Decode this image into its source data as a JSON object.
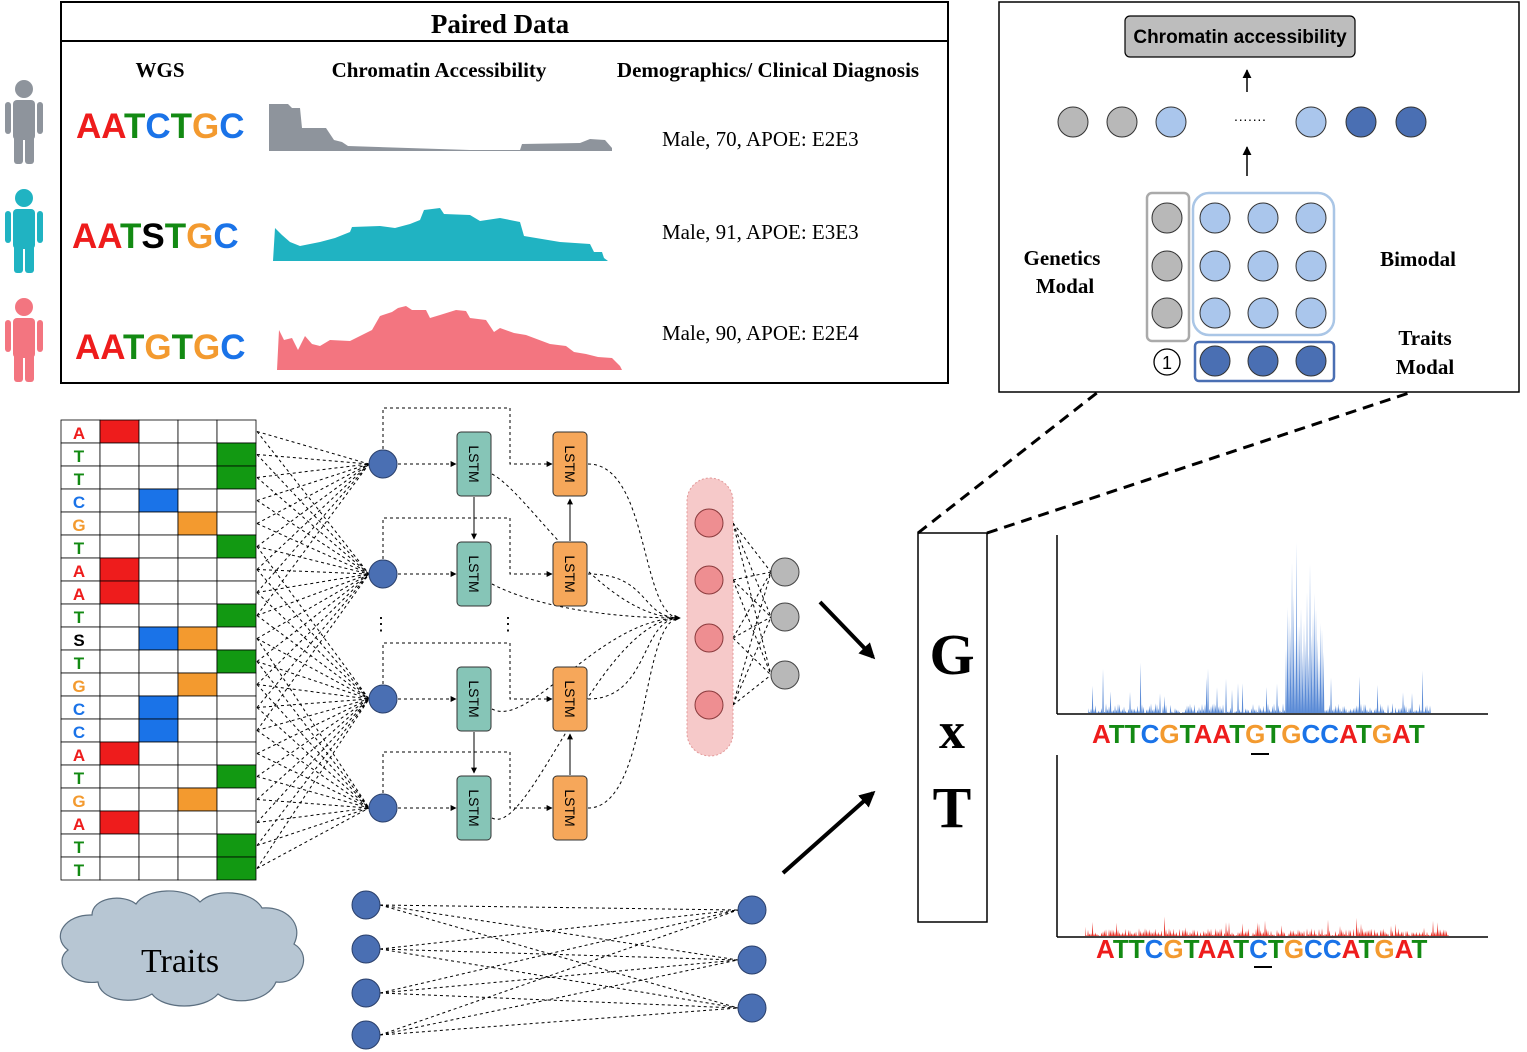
{
  "paired": {
    "title": "Paired Data",
    "col_wgs": "WGS",
    "col_chromatin": "Chromatin Accessibility",
    "col_demo": "Demographics/ Clinical Diagnosis",
    "rows": [
      {
        "seq": [
          "A",
          "A",
          "T",
          "C",
          "T",
          "G",
          "C"
        ],
        "demo": "Male, 70, APOE: E2E3",
        "color": "#8e949c"
      },
      {
        "seq": [
          "A",
          "A",
          "T",
          "S",
          "T",
          "G",
          "C"
        ],
        "demo": "Male, 91, APOE: E3E3",
        "color": "#20b3c2"
      },
      {
        "seq": [
          "A",
          "A",
          "T",
          "G",
          "T",
          "G",
          "C"
        ],
        "demo": "Male, 90, APOE: E2E4",
        "color": "#f37580"
      }
    ]
  },
  "base_colors": {
    "A": "#ee1c1c",
    "T": "#138a13",
    "C": "#1a73e8",
    "G": "#f39a2f",
    "S": "#000000"
  },
  "onehot_sequence": [
    "A",
    "T",
    "T",
    "C",
    "G",
    "T",
    "A",
    "A",
    "T",
    "S",
    "T",
    "G",
    "C",
    "C",
    "A",
    "T",
    "G",
    "A",
    "T",
    "T"
  ],
  "lstm_label": "LSTM",
  "traits_label": "Traits",
  "gxt": {
    "g": "G",
    "x": "x",
    "t": "T"
  },
  "model": {
    "output_label": "Chromatin accessibility",
    "ellipsis": "·······",
    "genetics_label_1": "Genetics",
    "genetics_label_2": "Modal",
    "bimodal_label": "Bimodal",
    "traits_label_1": "Traits",
    "traits_label_2": "Modal",
    "marker": "1"
  },
  "tracks": {
    "top_seq": [
      "A",
      "T",
      "T",
      "C",
      "G",
      "T",
      "A",
      "A",
      "T",
      "G",
      "T",
      "G",
      "C",
      "C",
      "A",
      "T",
      "G",
      "A",
      "T"
    ],
    "bottom_seq": [
      "A",
      "T",
      "T",
      "C",
      "G",
      "T",
      "A",
      "A",
      "T",
      "C",
      "T",
      "G",
      "C",
      "C",
      "A",
      "T",
      "G",
      "A",
      "T"
    ],
    "highlight_index": 9,
    "top_color": "#5b8bd6",
    "bottom_color": "#e8372e"
  },
  "colors": {
    "node_blue": "#4a6fb3",
    "lstm_teal": "#86c5b7",
    "lstm_orange": "#f6a75a",
    "node_pink": "#ee8e91",
    "pink_bg": "#f6c9c9",
    "node_gray": "#b8b8b8",
    "node_light_blue": "#aac6ec",
    "cloud": "#b7c6d3"
  }
}
